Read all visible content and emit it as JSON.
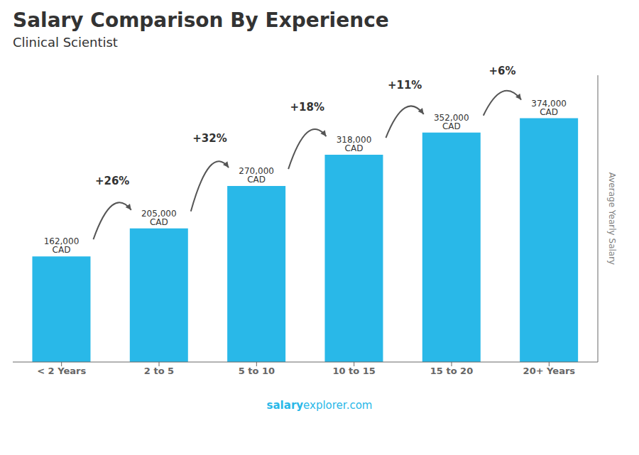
{
  "chart_data": {
    "type": "bar",
    "title": "Salary Comparison By Experience",
    "subtitle": "Clinical Scientist",
    "categories": [
      "< 2 Years",
      "2 to 5",
      "5 to 10",
      "10 to 15",
      "15 to 20",
      "20+ Years"
    ],
    "values": [
      162000,
      205000,
      270000,
      318000,
      352000,
      374000
    ],
    "value_labels": [
      "162,000 CAD",
      "205,000 CAD",
      "270,000 CAD",
      "318,000 CAD",
      "352,000 CAD",
      "374,000 CAD"
    ],
    "data_labels": true,
    "annotations": [
      "+26%",
      "+32%",
      "+18%",
      "+11%",
      "+6%"
    ],
    "color": "#29b8e8",
    "ylabel": "Average Yearly Salary",
    "ylim": [
      0,
      440000
    ],
    "tick_labels": "x",
    "footer": [
      "salary",
      "explorer.com"
    ]
  }
}
